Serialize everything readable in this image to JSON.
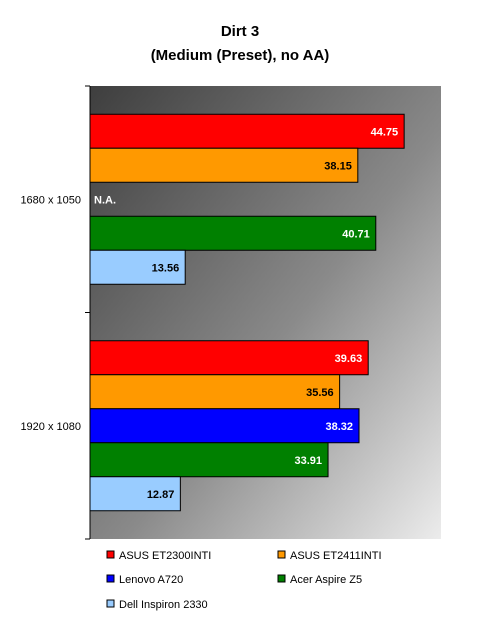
{
  "chart_data": {
    "type": "bar",
    "orientation": "horizontal",
    "title": "Dirt 3",
    "subtitle": "(Medium (Preset), no AA)",
    "xlabel": "",
    "ylabel": "",
    "xlim": [
      0,
      50
    ],
    "grid": false,
    "legend_position": "bottom",
    "categories": [
      "1680 x 1050",
      "1920 x 1080"
    ],
    "series": [
      {
        "name": "ASUS ET2300INTI",
        "color": "#ff0000",
        "label_color": "#ffffff",
        "values": [
          44.75,
          39.63
        ]
      },
      {
        "name": "ASUS ET2411INTI",
        "color": "#ff9900",
        "label_color": "#000000",
        "values": [
          38.15,
          35.56
        ]
      },
      {
        "name": "Lenovo A720",
        "color": "#0000ff",
        "label_color": "#ffffff",
        "values": [
          null,
          38.32
        ],
        "missing_label": "N.A."
      },
      {
        "name": "Acer Aspire Z5",
        "color": "#008000",
        "label_color": "#ffffff",
        "values": [
          40.71,
          33.91
        ]
      },
      {
        "name": "Dell Inspiron 2330",
        "color": "#99ccff",
        "label_color": "#000000",
        "values": [
          13.56,
          12.87
        ]
      }
    ]
  }
}
